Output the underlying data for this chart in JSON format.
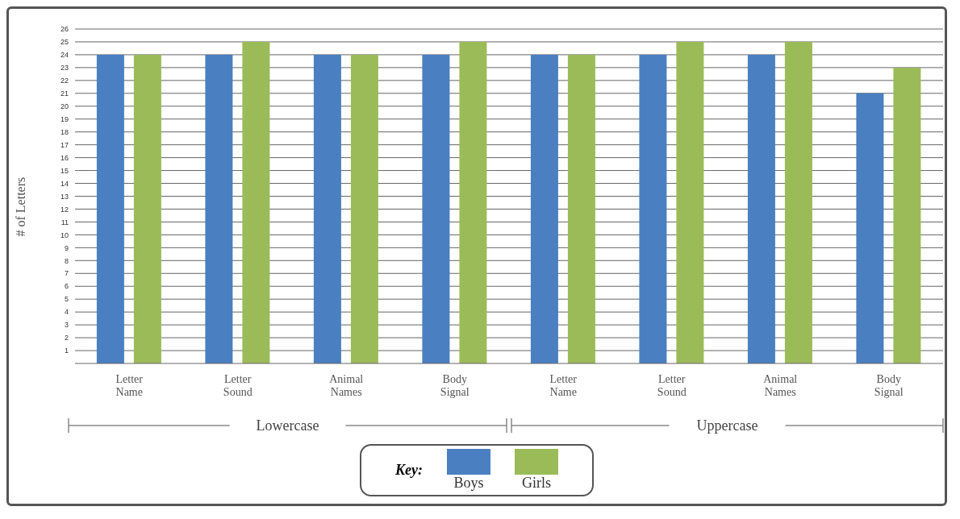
{
  "chart_data": {
    "type": "bar",
    "categories": [
      "Letter Name",
      "Letter Sound",
      "Animal Names",
      "Body Signal",
      "Letter Name",
      "Letter Sound",
      "Animal Names",
      "Body Signal"
    ],
    "series": [
      {
        "name": "Boys",
        "color": "#4a7fc1",
        "values": [
          24,
          24,
          24,
          24,
          24,
          24,
          24,
          21
        ]
      },
      {
        "name": "Girls",
        "color": "#9bbb59",
        "values": [
          24,
          25,
          24,
          25,
          24,
          25,
          25,
          23
        ]
      }
    ],
    "ylabel": "# of Letters",
    "ylim": [
      0,
      26
    ],
    "yticks": [
      1,
      2,
      3,
      4,
      5,
      6,
      7,
      8,
      9,
      10,
      11,
      12,
      13,
      14,
      15,
      16,
      17,
      18,
      19,
      20,
      21,
      22,
      23,
      24,
      25,
      26
    ],
    "grid": "y",
    "legend": "bottom",
    "legend_title": "Key:",
    "annotations": [
      "Lowercase",
      "Uppercase"
    ]
  }
}
